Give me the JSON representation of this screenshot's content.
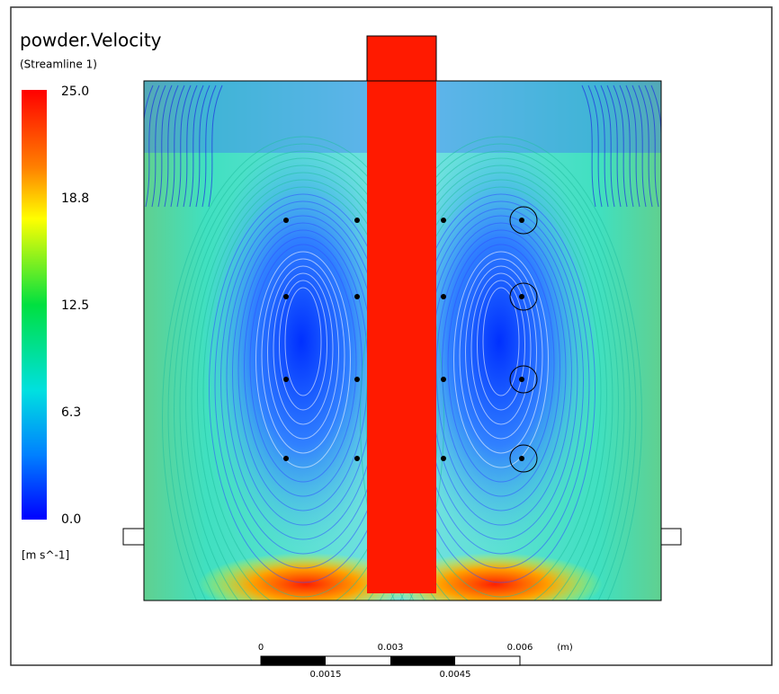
{
  "header": {
    "title": "powder.Velocity",
    "subtitle": "(Streamline 1)"
  },
  "legend": {
    "labels": [
      "25.0",
      "18.8",
      "12.5",
      "6.3",
      "0.0"
    ],
    "unit": "[m s^-1]"
  },
  "scale_bar": {
    "top_labels": [
      "0",
      "0.003",
      "0.006",
      "(m)"
    ],
    "bottom_labels": [
      "0.0015",
      "0.0045"
    ]
  }
}
